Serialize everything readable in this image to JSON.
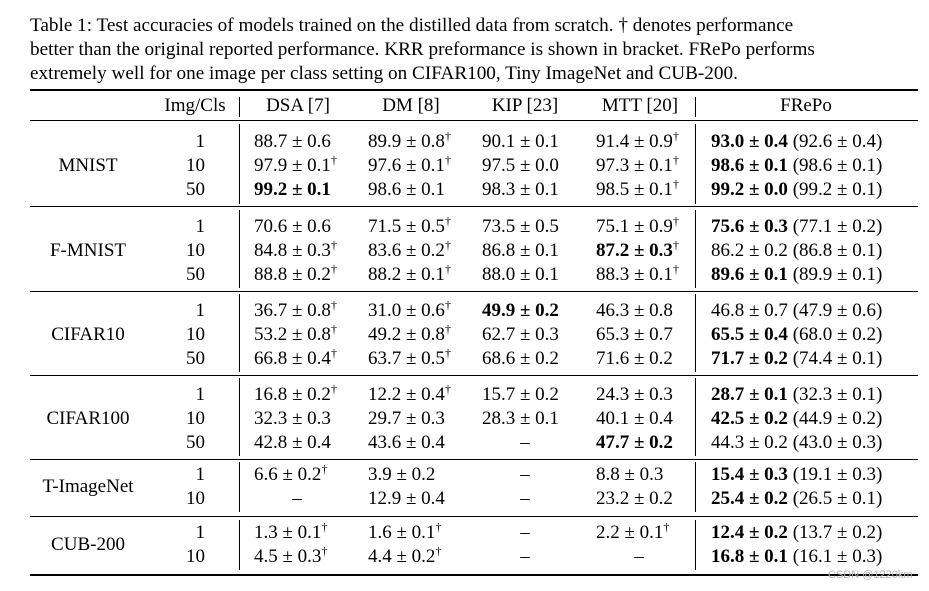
{
  "caption": {
    "line1": "Table 1: Test accuracies of models trained on the distilled data from scratch. † denotes performance",
    "line2": "better than the original reported performance. KRR preformance is shown in bracket. FRePo performs",
    "line3": "extremely well for one image per class setting on CIFAR100, Tiny ImageNet and CUB-200."
  },
  "headers": {
    "img_cls": "Img/Cls",
    "dsa": "DSA [7]",
    "dm": "DM [8]",
    "kip": "KIP [23]",
    "mtt": "MTT [20]",
    "frepo": "FRePo"
  },
  "groups": [
    {
      "dataset": "MNIST",
      "rows": [
        {
          "ipc": "1",
          "cells": [
            {
              "t": "88.7 ± 0.6",
              "b": false,
              "d": false
            },
            {
              "t": "89.9 ± 0.8",
              "b": false,
              "d": true
            },
            {
              "t": "90.1 ± 0.1",
              "b": false,
              "d": false
            },
            {
              "t": "91.4 ± 0.9",
              "b": false,
              "d": true
            },
            {
              "t": "93.0 ± 0.4",
              "b": true,
              "d": false,
              "k": "(92.6 ± 0.4)"
            }
          ]
        },
        {
          "ipc": "10",
          "cells": [
            {
              "t": "97.9 ± 0.1",
              "b": false,
              "d": true
            },
            {
              "t": "97.6 ± 0.1",
              "b": false,
              "d": true
            },
            {
              "t": "97.5 ± 0.0",
              "b": false,
              "d": false
            },
            {
              "t": "97.3 ± 0.1",
              "b": false,
              "d": true
            },
            {
              "t": "98.6 ± 0.1",
              "b": true,
              "d": false,
              "k": "(98.6 ± 0.1)"
            }
          ]
        },
        {
          "ipc": "50",
          "cells": [
            {
              "t": "99.2 ± 0.1",
              "b": true,
              "d": false
            },
            {
              "t": "98.6 ± 0.1",
              "b": false,
              "d": false
            },
            {
              "t": "98.3 ± 0.1",
              "b": false,
              "d": false
            },
            {
              "t": "98.5 ± 0.1",
              "b": false,
              "d": true
            },
            {
              "t": "99.2 ± 0.0",
              "b": true,
              "d": false,
              "k": "(99.2 ± 0.1)"
            }
          ]
        }
      ]
    },
    {
      "dataset": "F-MNIST",
      "rows": [
        {
          "ipc": "1",
          "cells": [
            {
              "t": "70.6 ± 0.6",
              "b": false,
              "d": false
            },
            {
              "t": "71.5 ± 0.5",
              "b": false,
              "d": true
            },
            {
              "t": "73.5 ± 0.5",
              "b": false,
              "d": false
            },
            {
              "t": "75.1 ± 0.9",
              "b": false,
              "d": true
            },
            {
              "t": "75.6 ± 0.3",
              "b": true,
              "d": false,
              "k": "(77.1 ± 0.2)"
            }
          ]
        },
        {
          "ipc": "10",
          "cells": [
            {
              "t": "84.8 ± 0.3",
              "b": false,
              "d": true
            },
            {
              "t": "83.6 ± 0.2",
              "b": false,
              "d": true
            },
            {
              "t": "86.8 ± 0.1",
              "b": false,
              "d": false
            },
            {
              "t": "87.2 ± 0.3",
              "b": true,
              "d": true
            },
            {
              "t": "86.2 ± 0.2",
              "b": false,
              "d": false,
              "k": "(86.8 ± 0.1)"
            }
          ]
        },
        {
          "ipc": "50",
          "cells": [
            {
              "t": "88.8 ± 0.2",
              "b": false,
              "d": true
            },
            {
              "t": "88.2 ± 0.1",
              "b": false,
              "d": true
            },
            {
              "t": "88.0 ± 0.1",
              "b": false,
              "d": false
            },
            {
              "t": "88.3 ± 0.1",
              "b": false,
              "d": true
            },
            {
              "t": "89.6 ± 0.1",
              "b": true,
              "d": false,
              "k": "(89.9 ± 0.1)"
            }
          ]
        }
      ]
    },
    {
      "dataset": "CIFAR10",
      "rows": [
        {
          "ipc": "1",
          "cells": [
            {
              "t": "36.7 ± 0.8",
              "b": false,
              "d": true
            },
            {
              "t": "31.0 ± 0.6",
              "b": false,
              "d": true
            },
            {
              "t": "49.9 ± 0.2",
              "b": true,
              "d": false
            },
            {
              "t": "46.3 ± 0.8",
              "b": false,
              "d": false
            },
            {
              "t": "46.8 ± 0.7",
              "b": false,
              "d": false,
              "k": "(47.9 ± 0.6)"
            }
          ]
        },
        {
          "ipc": "10",
          "cells": [
            {
              "t": "53.2 ± 0.8",
              "b": false,
              "d": true
            },
            {
              "t": "49.2 ± 0.8",
              "b": false,
              "d": true
            },
            {
              "t": "62.7 ± 0.3",
              "b": false,
              "d": false
            },
            {
              "t": "65.3 ± 0.7",
              "b": false,
              "d": false
            },
            {
              "t": "65.5 ± 0.4",
              "b": true,
              "d": false,
              "k": "(68.0 ± 0.2)"
            }
          ]
        },
        {
          "ipc": "50",
          "cells": [
            {
              "t": "66.8 ± 0.4",
              "b": false,
              "d": true
            },
            {
              "t": "63.7 ± 0.5",
              "b": false,
              "d": true
            },
            {
              "t": "68.6 ± 0.2",
              "b": false,
              "d": false
            },
            {
              "t": "71.6 ± 0.2",
              "b": false,
              "d": false
            },
            {
              "t": "71.7 ± 0.2",
              "b": true,
              "d": false,
              "k": "(74.4 ± 0.1)"
            }
          ]
        }
      ]
    },
    {
      "dataset": "CIFAR100",
      "rows": [
        {
          "ipc": "1",
          "cells": [
            {
              "t": "16.8 ± 0.2",
              "b": false,
              "d": true
            },
            {
              "t": "12.2 ± 0.4",
              "b": false,
              "d": true
            },
            {
              "t": "15.7 ± 0.2",
              "b": false,
              "d": false
            },
            {
              "t": "24.3 ± 0.3",
              "b": false,
              "d": false
            },
            {
              "t": "28.7 ± 0.1",
              "b": true,
              "d": false,
              "k": "(32.3 ± 0.1)"
            }
          ]
        },
        {
          "ipc": "10",
          "cells": [
            {
              "t": "32.3 ± 0.3",
              "b": false,
              "d": false
            },
            {
              "t": "29.7 ± 0.3",
              "b": false,
              "d": false
            },
            {
              "t": "28.3 ± 0.1",
              "b": false,
              "d": false
            },
            {
              "t": "40.1 ± 0.4",
              "b": false,
              "d": false
            },
            {
              "t": "42.5 ± 0.2",
              "b": true,
              "d": false,
              "k": "(44.9 ± 0.2)"
            }
          ]
        },
        {
          "ipc": "50",
          "cells": [
            {
              "t": "42.8 ± 0.4",
              "b": false,
              "d": false
            },
            {
              "t": "43.6 ± 0.4",
              "b": false,
              "d": false
            },
            {
              "t": "–",
              "b": false,
              "d": false
            },
            {
              "t": "47.7 ± 0.2",
              "b": true,
              "d": false
            },
            {
              "t": "44.3 ± 0.2",
              "b": false,
              "d": false,
              "k": "(43.0 ± 0.3)"
            }
          ]
        }
      ]
    },
    {
      "dataset": "T-ImageNet",
      "rows": [
        {
          "ipc": "1",
          "cells": [
            {
              "t": "6.6 ± 0.2",
              "b": false,
              "d": true
            },
            {
              "t": "3.9 ± 0.2",
              "b": false,
              "d": false
            },
            {
              "t": "–",
              "b": false,
              "d": false
            },
            {
              "t": "8.8 ± 0.3",
              "b": false,
              "d": false
            },
            {
              "t": "15.4 ± 0.3",
              "b": true,
              "d": false,
              "k": "(19.1 ± 0.3)"
            }
          ]
        },
        {
          "ipc": "10",
          "cells": [
            {
              "t": "–",
              "b": false,
              "d": false
            },
            {
              "t": "12.9 ± 0.4",
              "b": false,
              "d": false
            },
            {
              "t": "–",
              "b": false,
              "d": false
            },
            {
              "t": "23.2 ± 0.2",
              "b": false,
              "d": false
            },
            {
              "t": "25.4 ± 0.2",
              "b": true,
              "d": false,
              "k": "(26.5 ± 0.1)"
            }
          ]
        }
      ]
    },
    {
      "dataset": "CUB-200",
      "rows": [
        {
          "ipc": "1",
          "cells": [
            {
              "t": "1.3 ± 0.1",
              "b": false,
              "d": true
            },
            {
              "t": "1.6 ± 0.1",
              "b": false,
              "d": true
            },
            {
              "t": "–",
              "b": false,
              "d": false
            },
            {
              "t": "2.2 ± 0.1",
              "b": false,
              "d": true
            },
            {
              "t": "12.4 ± 0.2",
              "b": true,
              "d": false,
              "k": "(13.7 ± 0.2)"
            }
          ]
        },
        {
          "ipc": "10",
          "cells": [
            {
              "t": "4.5 ± 0.3",
              "b": false,
              "d": true
            },
            {
              "t": "4.4 ± 0.2",
              "b": false,
              "d": true
            },
            {
              "t": "–",
              "b": false,
              "d": false
            },
            {
              "t": "–",
              "b": false,
              "d": false
            },
            {
              "t": "16.8 ± 0.1",
              "b": true,
              "d": false,
              "k": "(16.1 ± 0.3)"
            }
          ]
        }
      ]
    }
  ],
  "watermark": "CSDN @1220km"
}
